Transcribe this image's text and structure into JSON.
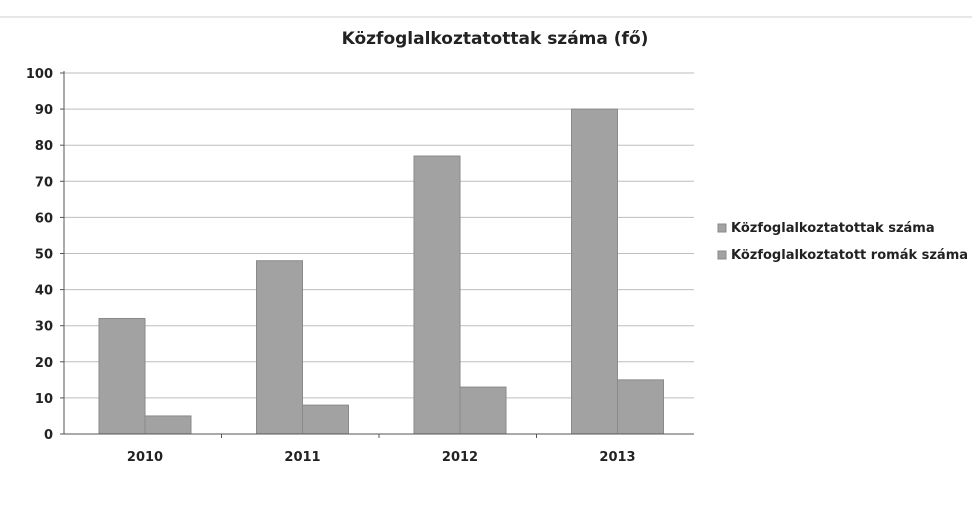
{
  "chart_data": {
    "type": "bar",
    "title": "Közfoglalkoztatottak száma (fő)",
    "xlabel": "",
    "ylabel": "",
    "categories": [
      "2010",
      "2011",
      "2012",
      "2013"
    ],
    "series": [
      {
        "name": "Közfoglalkoztatottak száma",
        "values": [
          32,
          48,
          77,
          90
        ]
      },
      {
        "name": "Közfoglalkoztatott romák száma",
        "values": [
          5,
          8,
          13,
          15
        ]
      }
    ],
    "ylim": [
      0,
      100
    ],
    "yticks": [
      "0",
      "10",
      "20",
      "30",
      "40",
      "50",
      "60",
      "70",
      "80",
      "90",
      "100"
    ],
    "grid": true,
    "legend_position": "right",
    "colors": {
      "bar": "#a2a2a2",
      "bar_edge": "#8a8a8a",
      "grid": "#bdbdbd",
      "axis": "#555555"
    }
  }
}
